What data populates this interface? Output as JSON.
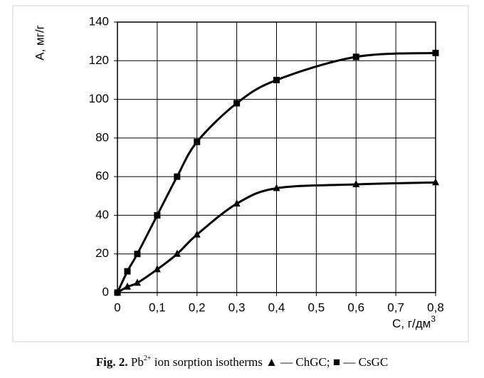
{
  "chart_data": {
    "type": "line",
    "ylabel": "А, мг/г",
    "xlabel": "С, г/дм",
    "xlabel_sup": "3",
    "caption": {
      "label": "Fig. 2.",
      "element": "Pb",
      "charge": "2+",
      "text": " ion sorption isotherms ▲ — ",
      "sep": "; ■ — "
    },
    "series": [
      {
        "name": "CsGC",
        "marker": "square",
        "color": "#000000",
        "x": [
          0,
          0.025,
          0.05,
          0.1,
          0.15,
          0.2,
          0.3,
          0.4,
          0.6,
          0.8
        ],
        "values": [
          0,
          11,
          20,
          40,
          60,
          78,
          98,
          110,
          122,
          124
        ]
      },
      {
        "name": "ChGC",
        "marker": "triangle",
        "color": "#000000",
        "x": [
          0,
          0.025,
          0.05,
          0.1,
          0.15,
          0.2,
          0.3,
          0.4,
          0.6,
          0.8
        ],
        "values": [
          0,
          3,
          5,
          12,
          20,
          30,
          46,
          54,
          56,
          57
        ]
      }
    ],
    "xlim": [
      0,
      0.8
    ],
    "xticks": [
      0,
      {
        "value": 0.1,
        "label": "0,1"
      },
      {
        "value": 0.2,
        "label": "0,2"
      },
      {
        "value": 0.3,
        "label": "0,3"
      },
      {
        "value": 0.4,
        "label": "0,4"
      },
      {
        "value": 0.5,
        "label": "0,5"
      },
      {
        "value": 0.6,
        "label": "0,6"
      },
      {
        "value": 0.7,
        "label": "0,7"
      },
      {
        "value": 0.8,
        "label": "0,8"
      }
    ],
    "ylim": [
      0,
      140
    ],
    "yticks": [
      0,
      20,
      40,
      60,
      80,
      100,
      120,
      140
    ],
    "grid": true
  }
}
